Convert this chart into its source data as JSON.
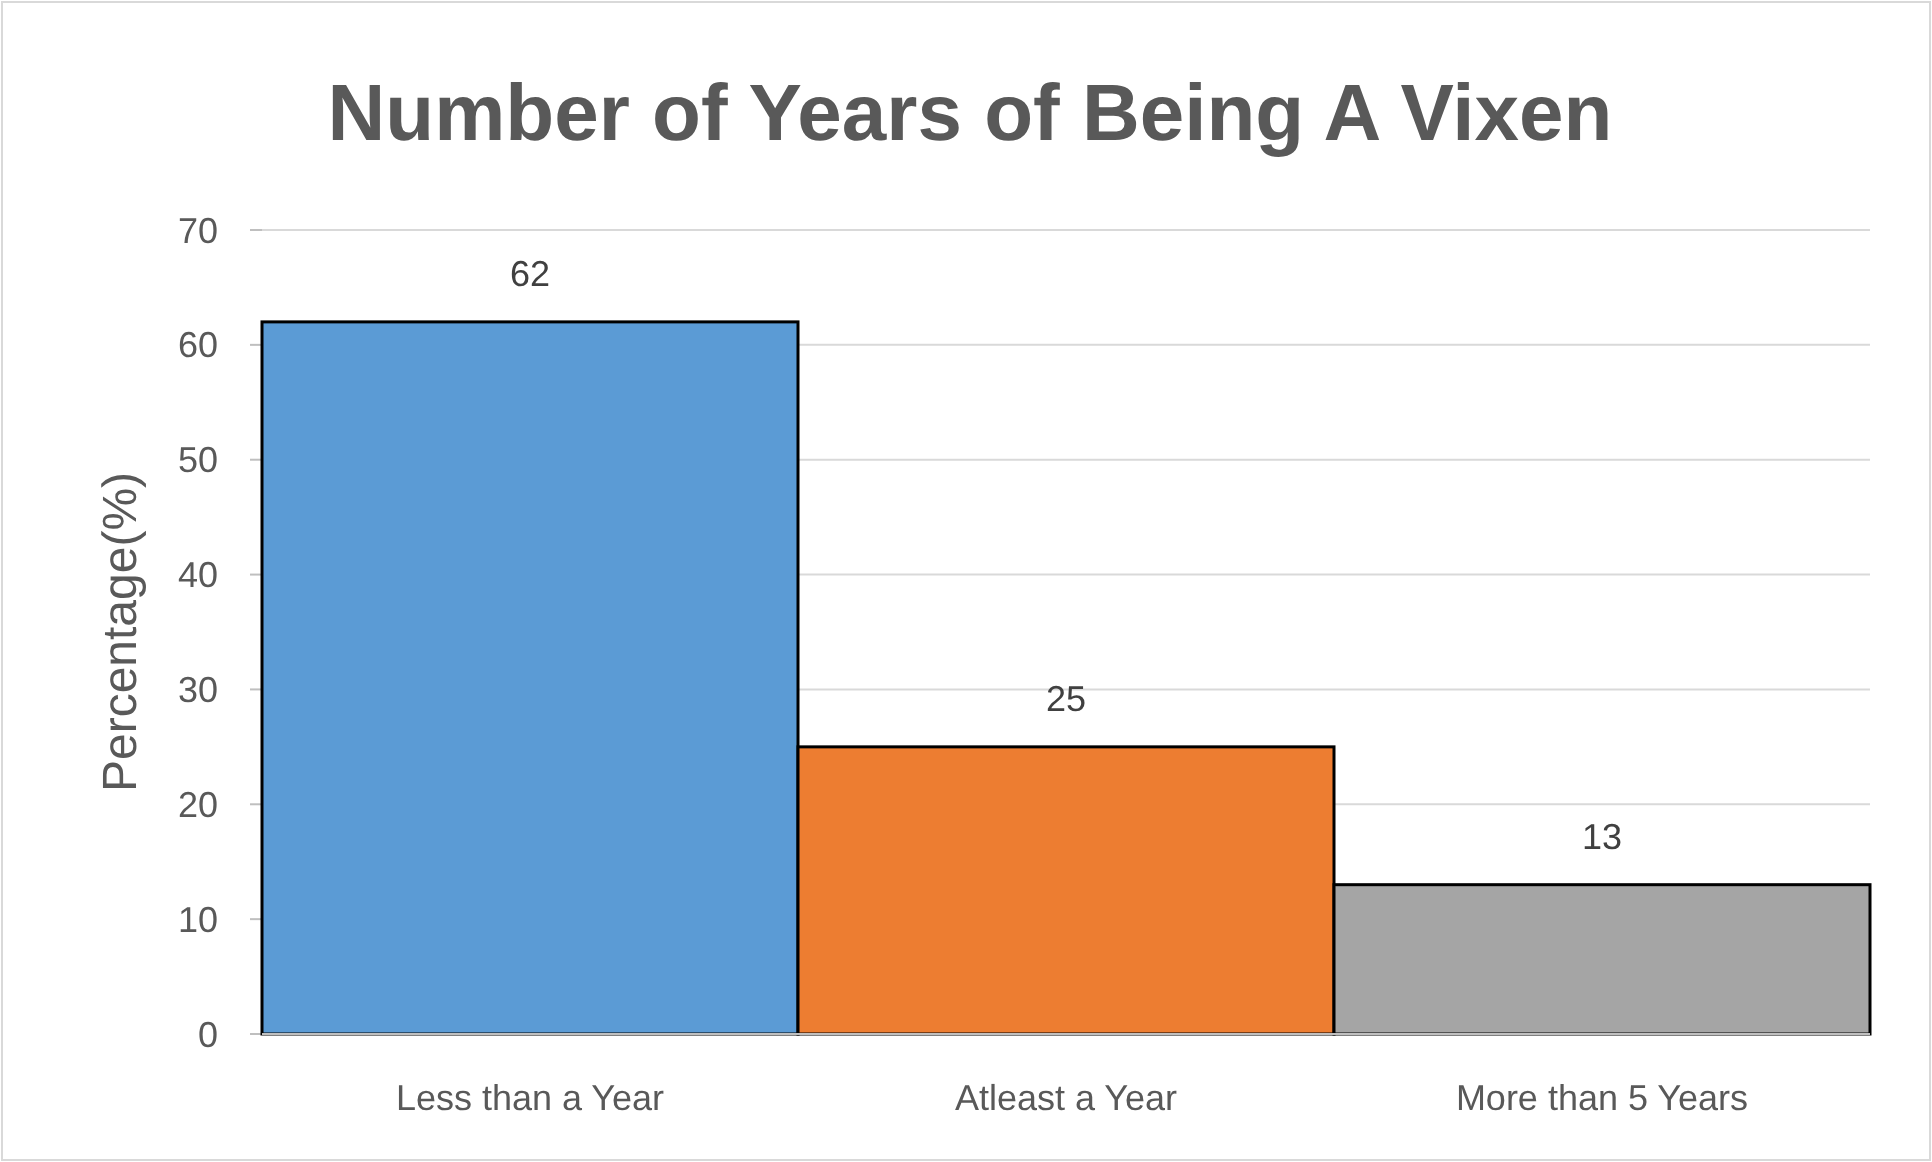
{
  "chart_data": {
    "type": "bar",
    "title": "Number of Years of Being A Vixen",
    "ylabel": "Percentage(%)",
    "categories": [
      "Less than a Year",
      "Atleast a Year",
      "More than 5 Years"
    ],
    "values": [
      62,
      25,
      13
    ],
    "colors": [
      "#5b9bd5",
      "#ed7d31",
      "#a5a5a5"
    ],
    "ylim": [
      0,
      70
    ],
    "yticks": [
      0,
      10,
      20,
      30,
      40,
      50,
      60,
      70
    ],
    "grid": "y",
    "data_labels": true
  }
}
